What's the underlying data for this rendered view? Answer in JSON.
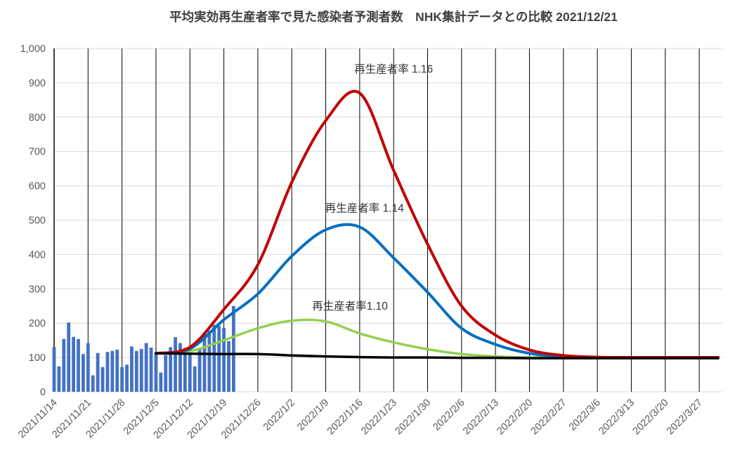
{
  "title": "平均実効再生産者率で見た感染者予測者数　NHK集計データとの比較 2021/12/21",
  "colors": {
    "bar": "#4472C4",
    "line_r110": "#92D050",
    "line_r114": "#0070C0",
    "line_r116": "#C00000",
    "line_black": "#000000",
    "grid_horizontal": "#D9D9D9",
    "grid_vertical": "#000000",
    "axis_text": "#595959",
    "title_text": "#3F3F3F"
  },
  "chart_data": {
    "type": "combo bar+line",
    "grid": "horizontal gray lines every 100, vertical black line every week",
    "legend_position": "none (inline text annotations)",
    "y_axis": {
      "min": 0,
      "max": 1000,
      "step": 100,
      "tick_labels": [
        "0",
        "100",
        "200",
        "300",
        "400",
        "500",
        "600",
        "700",
        "800",
        "900",
        "1,000"
      ]
    },
    "x_axis": {
      "tick_labels": [
        "2021/11/14",
        "2021/11/21",
        "2021/11/28",
        "2021/12/5",
        "2021/12/12",
        "2021/12/19",
        "2021/12/26",
        "2022/1/2",
        "2022/1/9",
        "2022/1/16",
        "2022/1/23",
        "2022/1/30",
        "2022/2/6",
        "2022/2/13",
        "2022/2/20",
        "2022/2/27",
        "2022/3/6",
        "2022/3/13",
        "2022/3/20",
        "2022/3/27"
      ]
    },
    "bars": {
      "color": "#4472C4",
      "dates": [
        "2021/11/14",
        "2021/11/15",
        "2021/11/16",
        "2021/11/17",
        "2021/11/18",
        "2021/11/19",
        "2021/11/20",
        "2021/11/21",
        "2021/11/22",
        "2021/11/23",
        "2021/11/24",
        "2021/11/25",
        "2021/11/26",
        "2021/11/27",
        "2021/11/28",
        "2021/11/29",
        "2021/11/30",
        "2021/12/1",
        "2021/12/2",
        "2021/12/3",
        "2021/12/4",
        "2021/12/5",
        "2021/12/6",
        "2021/12/7",
        "2021/12/8",
        "2021/12/9",
        "2021/12/10",
        "2021/12/11",
        "2021/12/12",
        "2021/12/13",
        "2021/12/14",
        "2021/12/15",
        "2021/12/16",
        "2021/12/17",
        "2021/12/18",
        "2021/12/19",
        "2021/12/20",
        "2021/12/21"
      ],
      "values": [
        130,
        74,
        154,
        202,
        160,
        154,
        110,
        142,
        48,
        113,
        72,
        116,
        119,
        123,
        72,
        79,
        132,
        119,
        125,
        142,
        129,
        113,
        56,
        107,
        130,
        159,
        142,
        128,
        113,
        74,
        128,
        169,
        178,
        195,
        192,
        186,
        148,
        250
      ]
    },
    "line_dates": [
      "2021/12/5",
      "2021/12/12",
      "2021/12/19",
      "2021/12/26",
      "2022/1/2",
      "2022/1/9",
      "2022/1/16",
      "2022/1/23",
      "2022/1/30",
      "2022/2/6",
      "2022/2/13",
      "2022/2/20",
      "2022/2/27",
      "2022/3/6",
      "2022/3/13",
      "2022/3/20",
      "2022/3/27"
    ],
    "series": [
      {
        "name": "再生産者率1.10",
        "color": "#92D050",
        "values": [
          112,
          118,
          150,
          185,
          207,
          205,
          170,
          144,
          124,
          110,
          103,
          100,
          100,
          100,
          100,
          100,
          100
        ]
      },
      {
        "name": "再生産者率 1.14",
        "color": "#0070C0",
        "values": [
          112,
          125,
          210,
          285,
          395,
          472,
          480,
          390,
          290,
          185,
          138,
          112,
          102,
          100,
          100,
          100,
          100
        ]
      },
      {
        "name": "再生産者率 1.16",
        "color": "#C00000",
        "values": [
          112,
          130,
          240,
          370,
          610,
          790,
          870,
          645,
          430,
          250,
          165,
          122,
          106,
          101,
          100,
          100,
          100
        ]
      },
      {
        "name": "black",
        "color": "#000000",
        "values": [
          112,
          111,
          110,
          110,
          106,
          103,
          101,
          100,
          100,
          99,
          99,
          98,
          98,
          98,
          98,
          98,
          98
        ]
      }
    ],
    "annotations": [
      {
        "text": "再生産者率 1.16",
        "date": "2022/1/23",
        "value": 940
      },
      {
        "text": "再生産者率 1.14",
        "date": "2022/1/17",
        "value": 535
      },
      {
        "text": "再生産者率1.10",
        "date": "2022/1/14",
        "value": 250
      }
    ]
  }
}
